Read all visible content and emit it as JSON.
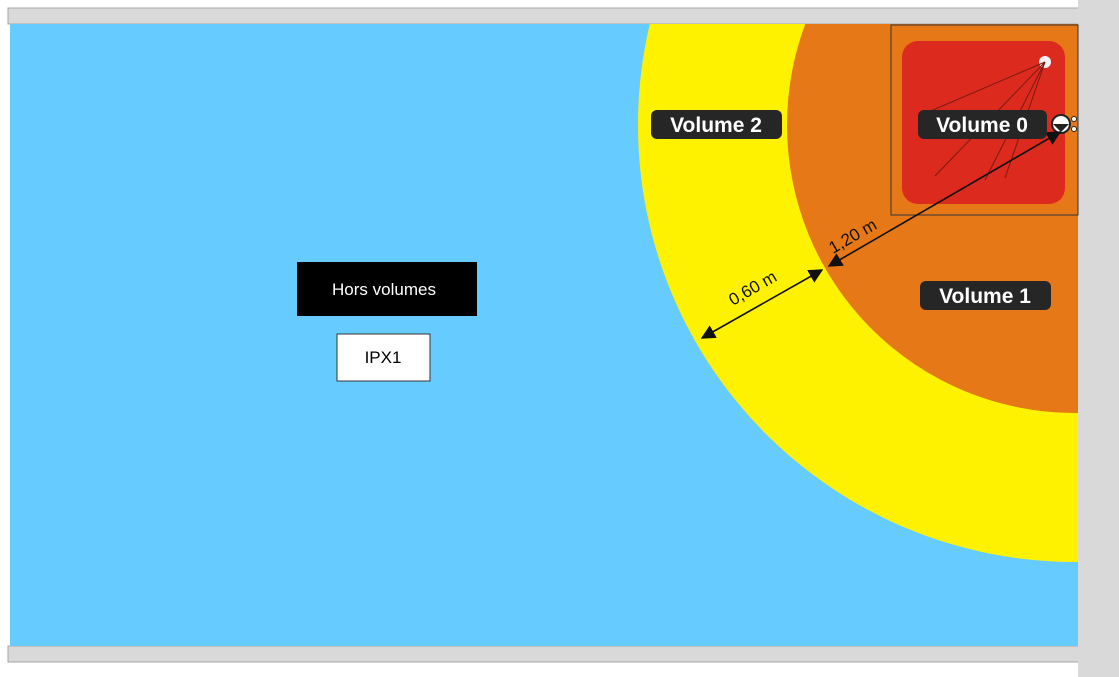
{
  "colors": {
    "outside": "#66ccff",
    "volume_2": "#fff200",
    "volume_1": "#e67817",
    "volume_0": "#dd2a1f",
    "frame": "#d9d9d9"
  },
  "labels": {
    "outside_volumes": "Hors volumes",
    "ip_rating": "IPX1",
    "volume_0": "Volume 0",
    "volume_1": "Volume 1",
    "volume_2": "Volume 2"
  },
  "dimensions": {
    "volume_1_width": "1,20 m",
    "volume_2_width": "0,60 m"
  },
  "icons": {
    "shower_head": "shower-head-icon",
    "shower_outlet": "shower-outlet-icon"
  }
}
